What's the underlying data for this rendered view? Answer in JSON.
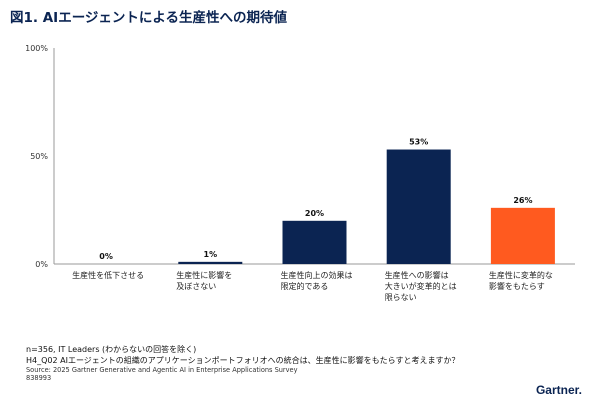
{
  "title": "図1. AIエージェントによる生産性への期待値",
  "chart_data": {
    "type": "bar",
    "categories": [
      [
        "生産性を低下させる"
      ],
      [
        "生産性に影響を",
        "及ぼさない"
      ],
      [
        "生産性向上の効果は",
        "限定的である"
      ],
      [
        "生産性への影響は",
        "大きいが変革的とは",
        "限らない"
      ],
      [
        "生産性に変革的な",
        "影響をもたらす"
      ]
    ],
    "values": [
      0,
      1,
      20,
      53,
      26
    ],
    "value_labels": [
      "0%",
      "1%",
      "20%",
      "53%",
      "26%"
    ],
    "yticks": [
      0,
      50,
      100
    ],
    "ytick_labels": [
      "0%",
      "50%",
      "100%"
    ],
    "ylim": [
      0,
      100
    ],
    "colors": [
      "#0b2452",
      "#0b2452",
      "#0b2452",
      "#0b2452",
      "#ff5a1f"
    ],
    "grid": false
  },
  "notes": {
    "line1": "n=356, IT Leaders (わからないの回答を除く)",
    "line2": "H4_Q02 AIエージェントの組織のアプリケーションポートフォリオへの統合は、生産性に影響をもたらすと考えますか？",
    "source": "Source: 2025 Gartner Generative and Agentic AI in Enterprise Applications Survey",
    "id": "838993"
  },
  "logo": {
    "text": "Gartner",
    "dot": "."
  }
}
